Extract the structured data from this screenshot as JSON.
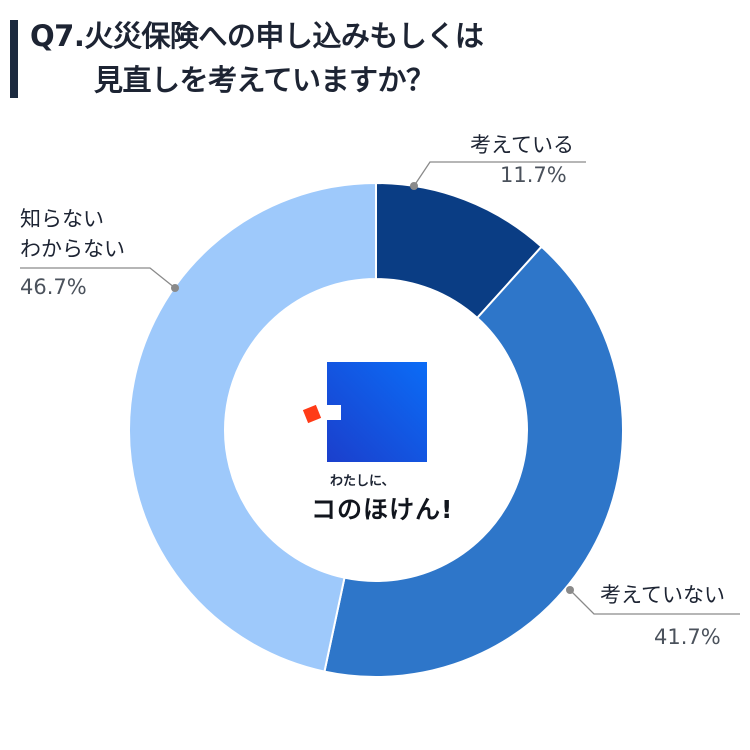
{
  "title_line1": "Q7.火災保険への申し込みもしくは",
  "title_line2": "見直しを考えていますか？",
  "chart_data": {
    "type": "pie",
    "title": "Q7.火災保険への申し込みもしくは見直しを考えていますか？",
    "categories": [
      "考えている",
      "考えていない",
      "知らない わからない"
    ],
    "values": [
      11.7,
      41.7,
      46.7
    ],
    "value_labels": [
      "11.7%",
      "41.7%",
      "46.7%"
    ],
    "colors": [
      "#0a3d84",
      "#2e76c9",
      "#9ec9fb"
    ],
    "donut": true
  },
  "labels": {
    "considering": {
      "name": "考えている",
      "value": "11.7%"
    },
    "not_considering": {
      "name": "考えていない",
      "value": "41.7%"
    },
    "unknown": {
      "name_line1": "知らない",
      "name_line2": "わからない",
      "value": "46.7%"
    }
  },
  "logo": {
    "small_text": "わたしに、",
    "big_text": "コのほけん!",
    "colors": {
      "square": "#1553e6",
      "accent": "#ff3b17"
    }
  }
}
